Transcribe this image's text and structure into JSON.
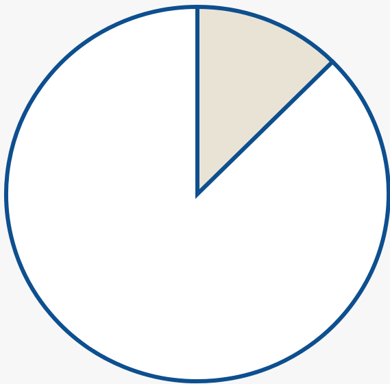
{
  "chart_data": {
    "type": "pie",
    "values": [
      12.5,
      87.5
    ],
    "colors": [
      "#e9e3d6",
      "#ffffff"
    ],
    "stroke": "#0d4f8f"
  }
}
